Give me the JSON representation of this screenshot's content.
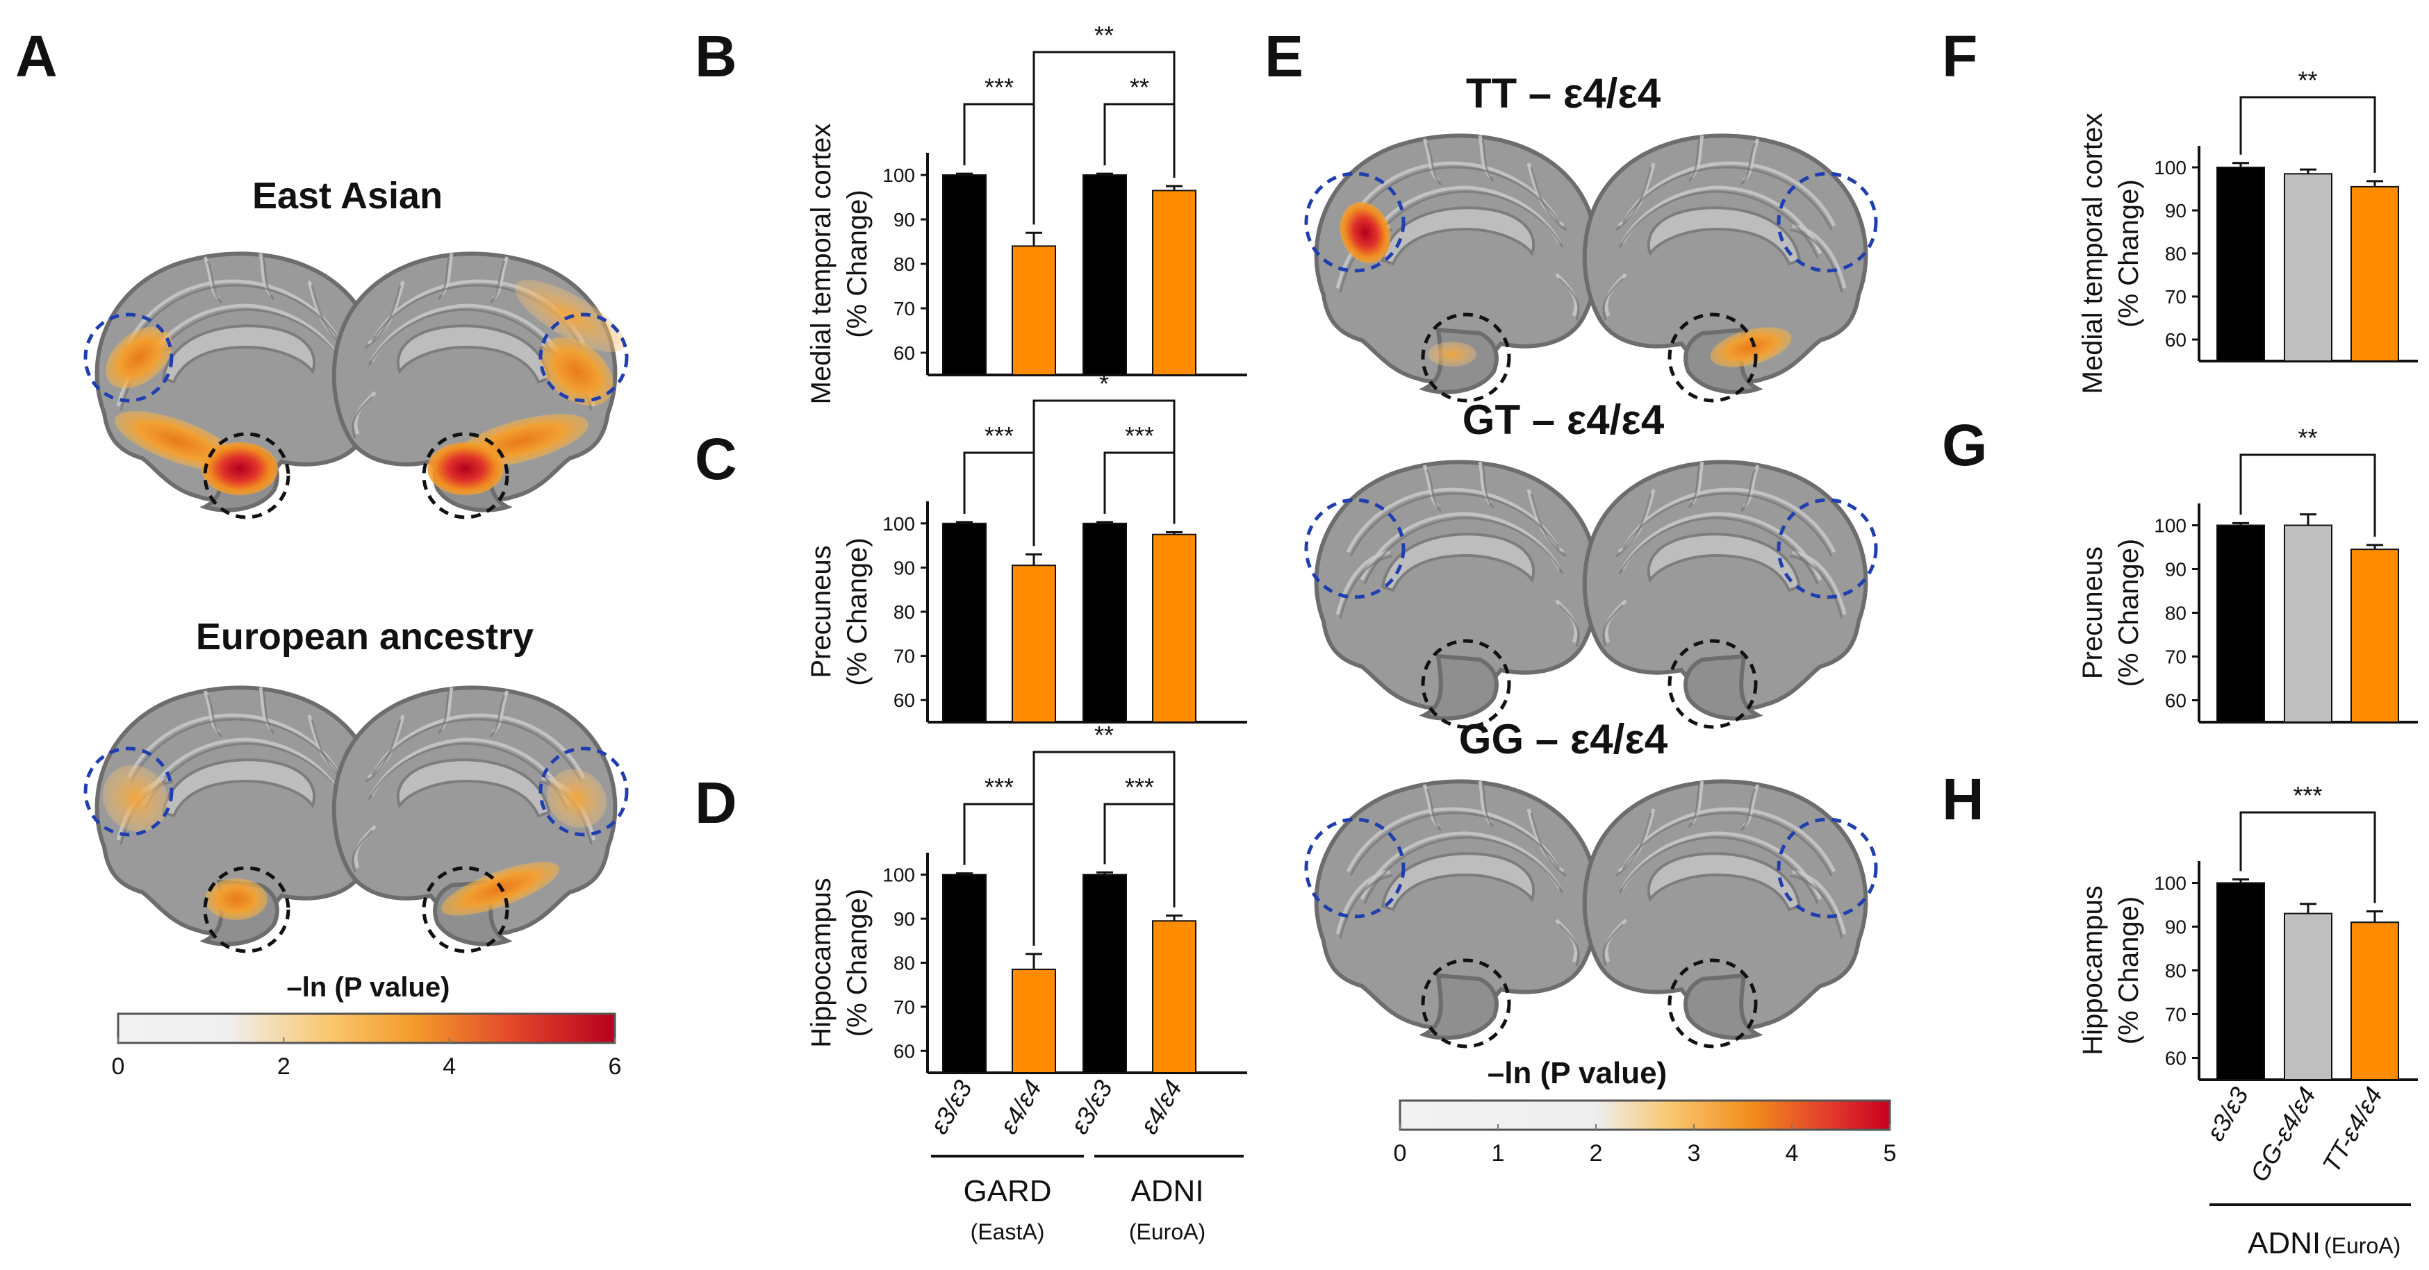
{
  "colors": {
    "black_bar": "#000000",
    "orange_bar": "#ff8c00",
    "gray_bar": "#bfbfbf",
    "blue_circle": "#1f3fb0",
    "black_circle": "#111111",
    "heat_low": "#ececec",
    "heat_mid": "#f8b030",
    "heat_high": "#c8102e"
  },
  "panel_labels": {
    "A": "A",
    "B": "B",
    "C": "C",
    "D": "D",
    "E": "E",
    "F": "F",
    "G": "G",
    "H": "H"
  },
  "panel_A": {
    "group1_title": "East Asian",
    "group2_title": "European ancestry",
    "colorbar": {
      "title": "–ln (P value)",
      "ticks": [
        "0",
        "2",
        "4",
        "6"
      ]
    }
  },
  "panel_E": {
    "row_titles": [
      "TT – ε4/ε4",
      "GT – ε4/ε4",
      "GG – ε4/ε4"
    ],
    "colorbar": {
      "title": "–ln (P value)",
      "ticks": [
        "0",
        "1",
        "2",
        "3",
        "4",
        "5"
      ]
    }
  },
  "group_labels_BD": {
    "gard": "GARD",
    "gard_sub": "(EastA)",
    "adni": "ADNI",
    "adni_sub": "(EuroA)"
  },
  "group_labels_FH": {
    "adni": "ADNI",
    "adni_sub": "(EuroA)"
  },
  "chart_data": [
    {
      "panel": "B",
      "type": "bar",
      "ylabel": [
        "Medial temporal cortex",
        "(% Change)"
      ],
      "ylim": [
        55,
        105
      ],
      "yticks": [
        60,
        70,
        80,
        90,
        100
      ],
      "categories": [
        "ε3/ε3",
        "ε4/ε4",
        "ε3/ε3",
        "ε4/ε4"
      ],
      "groups": [
        "GARD (EastA)",
        "ADNI (EuroA)"
      ],
      "values": [
        100,
        84,
        100,
        96.5
      ],
      "errors": [
        0.3,
        3,
        0.3,
        1
      ],
      "bar_colors": [
        "black_bar",
        "orange_bar",
        "black_bar",
        "orange_bar"
      ],
      "significance": [
        {
          "from": 0,
          "to": 1,
          "label": "***",
          "level": 1
        },
        {
          "from": 2,
          "to": 3,
          "label": "**",
          "level": 1
        },
        {
          "from": 1,
          "to": 3,
          "label": "**",
          "level": 2
        }
      ]
    },
    {
      "panel": "C",
      "type": "bar",
      "ylabel": [
        "Precuneus",
        "(% Change)"
      ],
      "ylim": [
        55,
        105
      ],
      "yticks": [
        60,
        70,
        80,
        90,
        100
      ],
      "categories": [
        "ε3/ε3",
        "ε4/ε4",
        "ε3/ε3",
        "ε4/ε4"
      ],
      "groups": [
        "GARD (EastA)",
        "ADNI (EuroA)"
      ],
      "values": [
        100,
        90.5,
        100,
        97.5
      ],
      "errors": [
        0.3,
        2.5,
        0.3,
        0.5
      ],
      "bar_colors": [
        "black_bar",
        "orange_bar",
        "black_bar",
        "orange_bar"
      ],
      "significance": [
        {
          "from": 0,
          "to": 1,
          "label": "***",
          "level": 1
        },
        {
          "from": 2,
          "to": 3,
          "label": "***",
          "level": 1
        },
        {
          "from": 1,
          "to": 3,
          "label": "*",
          "level": 2
        }
      ]
    },
    {
      "panel": "D",
      "type": "bar",
      "ylabel": [
        "Hippocampus",
        "(% Change)"
      ],
      "ylim": [
        55,
        105
      ],
      "yticks": [
        60,
        70,
        80,
        90,
        100
      ],
      "categories": [
        "ε3/ε3",
        "ε4/ε4",
        "ε3/ε3",
        "ε4/ε4"
      ],
      "groups": [
        "GARD (EastA)",
        "ADNI (EuroA)"
      ],
      "values": [
        100,
        78.5,
        100,
        89.5
      ],
      "errors": [
        0.3,
        3.5,
        0.5,
        1.2
      ],
      "bar_colors": [
        "black_bar",
        "orange_bar",
        "black_bar",
        "orange_bar"
      ],
      "significance": [
        {
          "from": 0,
          "to": 1,
          "label": "***",
          "level": 1
        },
        {
          "from": 2,
          "to": 3,
          "label": "***",
          "level": 1
        },
        {
          "from": 1,
          "to": 3,
          "label": "**",
          "level": 2
        }
      ]
    },
    {
      "panel": "F",
      "type": "bar",
      "ylabel": [
        "Medial temporal cortex",
        "(% Change)"
      ],
      "ylim": [
        55,
        105
      ],
      "yticks": [
        60,
        70,
        80,
        90,
        100
      ],
      "categories": [
        "ε3/ε3",
        "GG-ε4/ε4",
        "TT-ε4/ε4"
      ],
      "values": [
        100,
        98.5,
        95.5
      ],
      "errors": [
        1,
        1,
        1.3
      ],
      "bar_colors": [
        "black_bar",
        "gray_bar",
        "orange_bar"
      ],
      "significance": [
        {
          "from": 0,
          "to": 2,
          "label": "**",
          "level": 1
        }
      ]
    },
    {
      "panel": "G",
      "type": "bar",
      "ylabel": [
        "Precuneus",
        "(% Change)"
      ],
      "ylim": [
        55,
        105
      ],
      "yticks": [
        60,
        70,
        80,
        90,
        100
      ],
      "categories": [
        "ε3/ε3",
        "GG-ε4/ε4",
        "TT-ε4/ε4"
      ],
      "values": [
        100,
        100,
        94.5
      ],
      "errors": [
        0.5,
        2.5,
        1
      ],
      "bar_colors": [
        "black_bar",
        "gray_bar",
        "orange_bar"
      ],
      "significance": [
        {
          "from": 0,
          "to": 2,
          "label": "**",
          "level": 1
        }
      ]
    },
    {
      "panel": "H",
      "type": "bar",
      "ylabel": [
        "Hippocampus",
        "(% Change)"
      ],
      "ylim": [
        55,
        105
      ],
      "yticks": [
        60,
        70,
        80,
        90,
        100
      ],
      "categories": [
        "ε3/ε3",
        "GG-ε4/ε4",
        "TT-ε4/ε4"
      ],
      "values": [
        100,
        93,
        91
      ],
      "errors": [
        0.8,
        2.2,
        2.5
      ],
      "bar_colors": [
        "black_bar",
        "gray_bar",
        "orange_bar"
      ],
      "significance": [
        {
          "from": 0,
          "to": 2,
          "label": "***",
          "level": 1
        }
      ]
    }
  ]
}
